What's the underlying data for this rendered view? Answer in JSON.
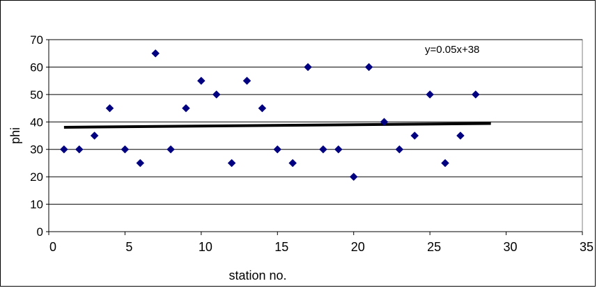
{
  "chart_data": {
    "type": "scatter",
    "xlabel": "station no.",
    "ylabel": "phi",
    "xlim": [
      0,
      35
    ],
    "ylim": [
      0,
      70
    ],
    "x_ticks": [
      0,
      5,
      10,
      15,
      20,
      25,
      30,
      35
    ],
    "y_ticks": [
      0,
      10,
      20,
      30,
      40,
      50,
      60,
      70
    ],
    "grid": {
      "horizontal": true,
      "vertical": false
    },
    "legend": "none",
    "series": [
      {
        "marker": "diamond",
        "color": "#000080",
        "x": [
          1,
          2,
          3,
          4,
          5,
          6,
          7,
          8,
          9,
          10,
          11,
          12,
          13,
          14,
          15,
          16,
          17,
          18,
          19,
          20,
          21,
          22,
          23,
          24,
          25,
          26,
          27,
          28
        ],
        "y": [
          30,
          30,
          35,
          45,
          30,
          25,
          65,
          30,
          45,
          55,
          50,
          25,
          55,
          45,
          30,
          25,
          60,
          30,
          30,
          20,
          60,
          40,
          30,
          35,
          50,
          25,
          35,
          50
        ]
      }
    ],
    "trendline": {
      "type": "linear",
      "slope": 0.05,
      "intercept": 38,
      "x_range": [
        1,
        29
      ],
      "color": "#000000",
      "label": "y=0.05x+38"
    }
  }
}
